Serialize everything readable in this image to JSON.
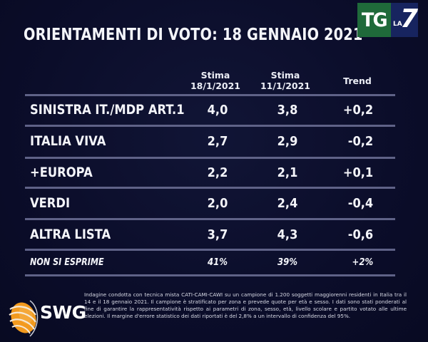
{
  "title": "ORIENTAMENTI DI VOTO: 18 GENNAIO 2021",
  "logo": {
    "tg": "TG",
    "la": "LA",
    "seven": "7",
    "green": "#1f6a3a",
    "blue": "#17245f"
  },
  "columns": [
    {
      "line1": "Stima",
      "line2": "18/1/2021"
    },
    {
      "line1": "Stima",
      "line2": "11/1/2021"
    },
    {
      "line1": "Trend"
    }
  ],
  "rows": [
    {
      "name": "SINISTRA IT./MDP ART.1",
      "current": "4,0",
      "previous": "3,8",
      "trend": "+0,2"
    },
    {
      "name": "ITALIA VIVA",
      "current": "2,7",
      "previous": "2,9",
      "trend": "-0,2"
    },
    {
      "name": "+EUROPA",
      "current": "2,2",
      "previous": "2,1",
      "trend": "+0,1"
    },
    {
      "name": "VERDI",
      "current": "2,0",
      "previous": "2,4",
      "trend": "-0,4"
    },
    {
      "name": "ALTRA LISTA",
      "current": "3,7",
      "previous": "4,3",
      "trend": "-0,6"
    },
    {
      "name": "NON SI ESPRIME",
      "current": "41%",
      "previous": "39%",
      "trend": "+2%"
    }
  ],
  "footer": {
    "brand": "SWG",
    "note": "Indagine condotta con tecnica mista CATI-CAMI-CAWI su un campione di 1.200 soggetti maggiorenni residenti in Italia tra il 14 e il 18 gennaio 2021. Il campione è stratificato per zona e prevede quote per età e sesso. I dati sono stati ponderati al fine di garantire la rappresentatività rispetto ai parametri di zona, sesso, età, livello scolare e partito votato alle ultime elezioni. Il margine d'errore statistico dei dati riportati è del 2,8% a un intervallo di confidenza del 95%."
  },
  "colors": {
    "background": "#0b0d2a",
    "separator": "#5f6287",
    "text": "#f4f5fa",
    "swg_orange": "#f39a1e"
  }
}
